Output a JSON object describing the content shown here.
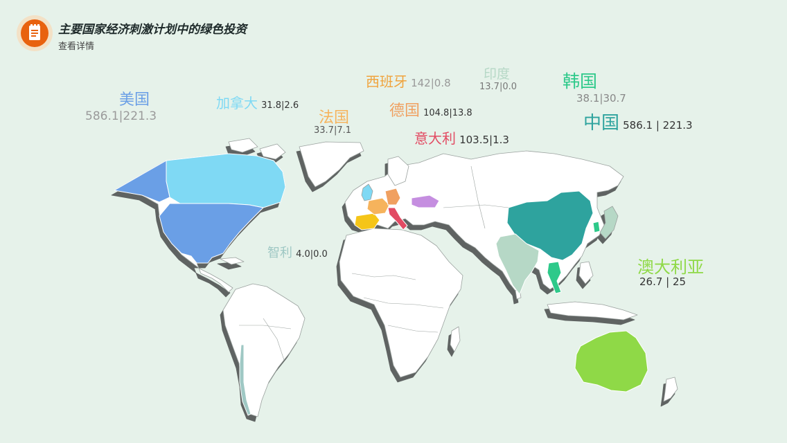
{
  "header": {
    "title": "主要国家经济刺激计划中的绿色投资",
    "subtitle": "查看详情",
    "icon": "document-list-icon"
  },
  "colors": {
    "background": "#e6f2ea",
    "land": "#ffffff",
    "shadow": "#5e6462",
    "accent": "#e8620f"
  },
  "countries": [
    {
      "key": "usa",
      "name": "美国",
      "value": "586.1|221.3",
      "color": "#6a9fe6"
    },
    {
      "key": "canada",
      "name": "加拿大",
      "value": "31.8|2.6",
      "color": "#7fd9f4"
    },
    {
      "key": "france",
      "name": "法国",
      "value": "33.7|7.1",
      "color": "#f6b35c"
    },
    {
      "key": "spain",
      "name": "西班牙",
      "value": "142|0.8",
      "color": "#f0a33c"
    },
    {
      "key": "germany",
      "name": "德国",
      "value": "104.8|13.8",
      "color": "#f0a060"
    },
    {
      "key": "italy",
      "name": "意大利",
      "value": "103.5|1.3",
      "color": "#e24b63"
    },
    {
      "key": "india",
      "name": "印度",
      "value": "13.7|0.0",
      "color": "#b6d8c6"
    },
    {
      "key": "korea",
      "name": "韩国",
      "value": "38.1|30.7",
      "color": "#2ec98a"
    },
    {
      "key": "china",
      "name": "中国",
      "value": "586.1 | 221.3",
      "color": "#2ea39e"
    },
    {
      "key": "australia",
      "name": "澳大利亚",
      "value": "26.7 | 25",
      "color": "#8fd947"
    },
    {
      "key": "chile",
      "name": "智利",
      "value": "4.0|0.0",
      "color": "#9fc8c4"
    }
  ]
}
